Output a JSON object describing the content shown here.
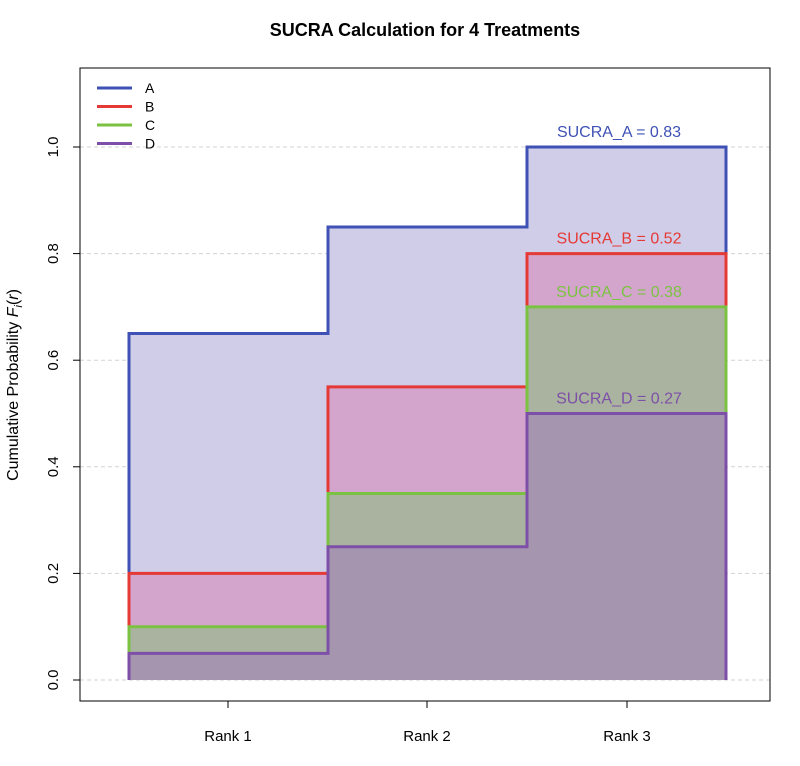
{
  "chart_data": {
    "type": "step-area",
    "title": "SUCRA Calculation for 4 Treatments",
    "xlabel": "",
    "ylabel_prefix": "Cumulative Probability ",
    "ylabel_func": "F",
    "ylabel_sub": "i",
    "ylabel_arg": "r",
    "categories": [
      "Rank 1",
      "Rank 2",
      "Rank 3"
    ],
    "ylim": [
      0,
      1.1
    ],
    "yticks": [
      0.0,
      0.2,
      0.4,
      0.6,
      0.8,
      1.0
    ],
    "ytick_labels": [
      "0.0",
      "0.2",
      "0.4",
      "0.6",
      "0.8",
      "1.0"
    ],
    "grid": true,
    "legend_position": "top-left",
    "series": [
      {
        "name": "A",
        "values": [
          0.65,
          0.85,
          1.0
        ],
        "color": "#3F51B5",
        "fill": "#D0CDE8",
        "sucra_label": "SUCRA_A = 0.83"
      },
      {
        "name": "B",
        "values": [
          0.2,
          0.55,
          0.8
        ],
        "color": "#E53935",
        "fill": "#D3A5CD",
        "sucra_label": "SUCRA_B = 0.52"
      },
      {
        "name": "C",
        "values": [
          0.1,
          0.35,
          0.7
        ],
        "color": "#7CC242",
        "fill": "#A9B3A0",
        "sucra_label": "SUCRA_C = 0.38"
      },
      {
        "name": "D",
        "values": [
          0.05,
          0.25,
          0.5
        ],
        "color": "#7E4FA8",
        "fill": "#A595AE",
        "sucra_label": "SUCRA_D = 0.27"
      }
    ]
  }
}
